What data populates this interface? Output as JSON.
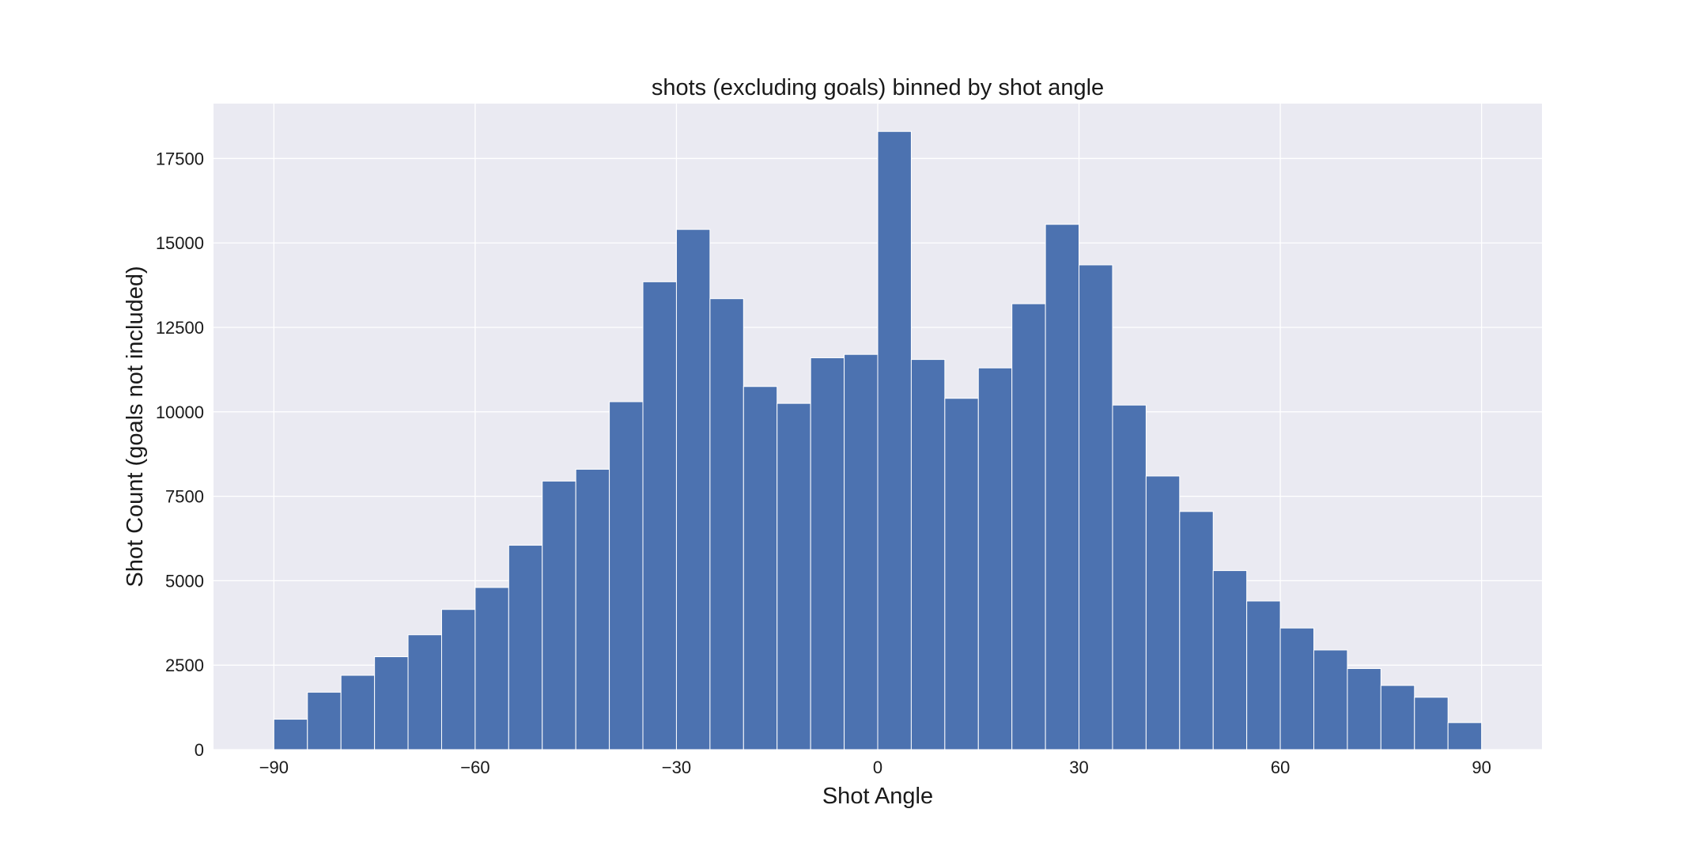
{
  "chart_data": {
    "type": "bar",
    "title": "shots (excluding goals) binned by shot angle",
    "xlabel": "Shot Angle",
    "ylabel": "Shot Count (goals not included)",
    "xlim": [
      -99,
      99
    ],
    "ylim": [
      0,
      19125
    ],
    "xticks": [
      -90,
      -60,
      -30,
      0,
      30,
      60,
      90
    ],
    "yticks": [
      0,
      2500,
      5000,
      7500,
      10000,
      12500,
      15000,
      17500
    ],
    "grid": true,
    "background": "#eaeaf2",
    "bar_color": "#4c72b0",
    "bin_edges": [
      -90,
      -85,
      -80,
      -75,
      -70,
      -65,
      -60,
      -55,
      -50,
      -45,
      -40,
      -35,
      -30,
      -25,
      -20,
      -15,
      -10,
      -5,
      0,
      5,
      10,
      15,
      20,
      25,
      30,
      35,
      40,
      45,
      50,
      55,
      60,
      65,
      70,
      75,
      80,
      85,
      90
    ],
    "values": [
      900,
      1700,
      2200,
      2750,
      3400,
      4150,
      4800,
      6050,
      7950,
      8300,
      10300,
      13850,
      15400,
      13350,
      10750,
      10250,
      11600,
      11700,
      18300,
      11550,
      10400,
      11300,
      13200,
      15550,
      14350,
      10200,
      8100,
      7050,
      5300,
      4400,
      3600,
      2950,
      2400,
      1900,
      1550,
      800
    ]
  }
}
